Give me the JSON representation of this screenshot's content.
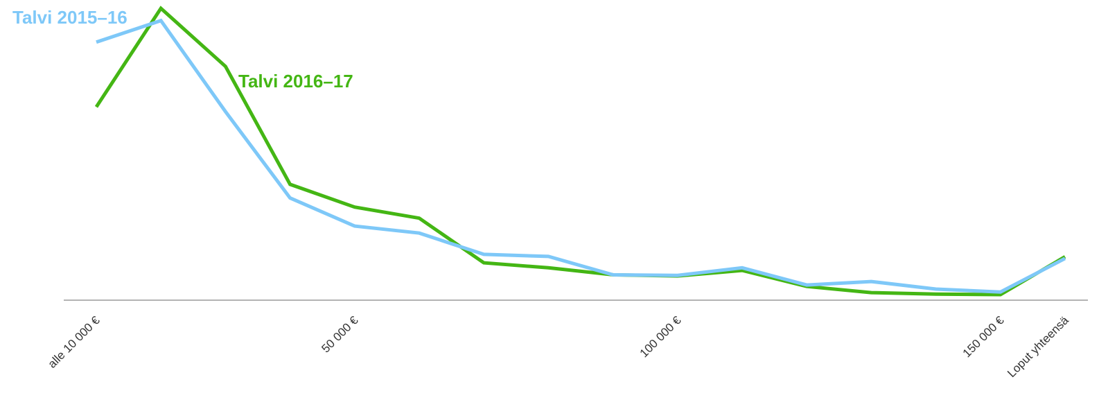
{
  "chart_data": {
    "type": "line",
    "title": "",
    "xlabel": "",
    "ylabel": "",
    "categories": [
      "alle 10 000 €",
      "",
      "",
      "",
      "50 000 €",
      "",
      "",
      "",
      "",
      "100 000 €",
      "",
      "",
      "",
      "",
      "150 000 €",
      "Loput yhteensä"
    ],
    "x_tick_labels": [
      "alle 10 000 €",
      "50 000 €",
      "100 000 €",
      "150 000 €",
      "Loput yhteensä"
    ],
    "ylim": [
      0,
      100
    ],
    "grid": false,
    "legend": "inline labels",
    "series": [
      {
        "name": "Talvi 2015–16",
        "color": "#7ec8f8",
        "values": [
          88.4,
          95.8,
          64.6,
          35.0,
          25.4,
          23.0,
          15.7,
          15.0,
          8.7,
          8.5,
          11.1,
          5.2,
          6.4,
          3.8,
          2.8,
          14.3
        ]
      },
      {
        "name": "Talvi 2016–17",
        "color": "#44b614",
        "values": [
          66.2,
          100.0,
          80.1,
          39.7,
          31.9,
          28.1,
          12.8,
          11.1,
          8.7,
          8.3,
          10.2,
          4.7,
          2.6,
          2.1,
          1.9,
          14.9
        ]
      }
    ],
    "axis_color": "#b3b3b3"
  }
}
